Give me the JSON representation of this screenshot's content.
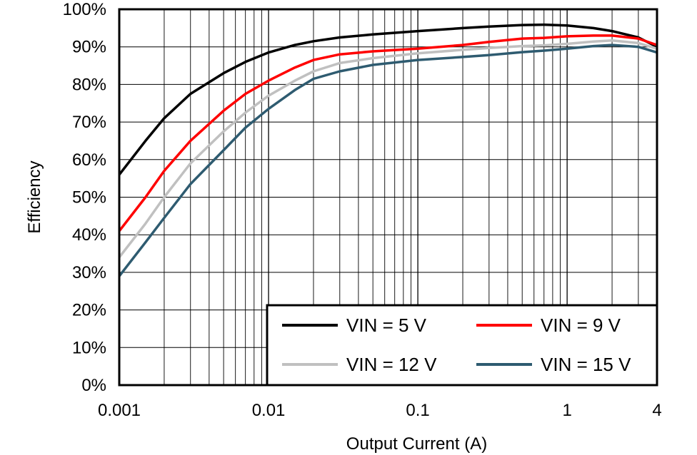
{
  "chart_data": {
    "type": "line",
    "title": "",
    "xlabel": "Output Current (A)",
    "ylabel": "Efficiency",
    "xscale": "log",
    "xlim": [
      0.001,
      4
    ],
    "ylim": [
      0,
      100
    ],
    "x_ticks": [
      {
        "value": 0.001,
        "label": "0.001"
      },
      {
        "value": 0.01,
        "label": "0.01"
      },
      {
        "value": 0.1,
        "label": "0.1"
      },
      {
        "value": 1,
        "label": "1"
      },
      {
        "value": 4,
        "label": "4"
      }
    ],
    "y_ticks": [
      {
        "value": 0,
        "label": "0%"
      },
      {
        "value": 10,
        "label": "10%"
      },
      {
        "value": 20,
        "label": "20%"
      },
      {
        "value": 30,
        "label": "30%"
      },
      {
        "value": 40,
        "label": "40%"
      },
      {
        "value": 50,
        "label": "50%"
      },
      {
        "value": 60,
        "label": "60%"
      },
      {
        "value": 70,
        "label": "70%"
      },
      {
        "value": 80,
        "label": "80%"
      },
      {
        "value": 90,
        "label": "90%"
      },
      {
        "value": 100,
        "label": "100%"
      }
    ],
    "grid": true,
    "legend_position": "bottom-right",
    "series": [
      {
        "name": "VIN = 5 V",
        "color": "#000000",
        "x": [
          0.001,
          0.0015,
          0.002,
          0.003,
          0.005,
          0.007,
          0.01,
          0.015,
          0.02,
          0.03,
          0.05,
          0.1,
          0.2,
          0.3,
          0.5,
          0.7,
          1,
          1.5,
          2,
          3,
          4
        ],
        "y": [
          56,
          65,
          71,
          77.5,
          83,
          86,
          88.5,
          90.5,
          91.5,
          92.5,
          93.3,
          94.2,
          95,
          95.4,
          95.8,
          95.9,
          95.7,
          95,
          94.2,
          92.5,
          90
        ]
      },
      {
        "name": "VIN = 9 V",
        "color": "#ff0000",
        "x": [
          0.001,
          0.0015,
          0.002,
          0.003,
          0.005,
          0.007,
          0.01,
          0.015,
          0.02,
          0.03,
          0.05,
          0.1,
          0.2,
          0.3,
          0.5,
          0.7,
          1,
          1.5,
          2,
          3,
          4
        ],
        "y": [
          41,
          50,
          57,
          65,
          73,
          77.5,
          81,
          84.5,
          86.5,
          88,
          88.8,
          89.5,
          90.5,
          91.3,
          92.2,
          92.4,
          92.8,
          93,
          93,
          92.2,
          90.5
        ]
      },
      {
        "name": "VIN = 12 V",
        "color": "#c0c0c0",
        "x": [
          0.001,
          0.0015,
          0.002,
          0.003,
          0.005,
          0.007,
          0.01,
          0.015,
          0.02,
          0.03,
          0.05,
          0.1,
          0.2,
          0.3,
          0.5,
          0.7,
          1,
          1.5,
          2,
          3,
          4
        ],
        "y": [
          34,
          43,
          50,
          59,
          67.5,
          72.5,
          77,
          81,
          83.5,
          85.7,
          87,
          88.3,
          89.2,
          89.7,
          90.2,
          90.4,
          90.8,
          91.4,
          91.7,
          91,
          89.5
        ]
      },
      {
        "name": "VIN = 15 V",
        "color": "#2e5b70",
        "x": [
          0.001,
          0.0015,
          0.002,
          0.003,
          0.005,
          0.007,
          0.01,
          0.015,
          0.02,
          0.03,
          0.05,
          0.1,
          0.2,
          0.3,
          0.5,
          0.7,
          1,
          1.5,
          2,
          3,
          4
        ],
        "y": [
          29,
          38,
          44.5,
          53.5,
          62.5,
          68.5,
          73.5,
          78.5,
          81.5,
          83.5,
          85.2,
          86.5,
          87.3,
          87.8,
          88.6,
          89,
          89.5,
          90.2,
          90.5,
          90,
          88.5
        ]
      }
    ]
  }
}
